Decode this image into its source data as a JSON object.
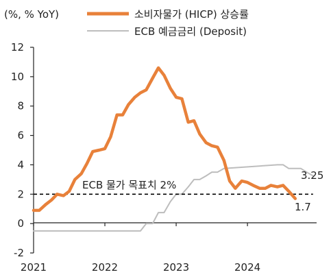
{
  "chart_data": {
    "type": "line",
    "unit_label": "(%, % YoY)",
    "ylim": [
      -2,
      12
    ],
    "yticks": [
      -2,
      0,
      2,
      4,
      6,
      8,
      10,
      12
    ],
    "xlim": [
      2021.0,
      2024.97
    ],
    "xticks": [
      {
        "value": 2021,
        "label": "2021"
      },
      {
        "value": 2022,
        "label": "2022"
      },
      {
        "value": 2023,
        "label": "2023"
      },
      {
        "value": 2024,
        "label": "2024"
      }
    ],
    "grid": false,
    "legend_position": "top-right",
    "series": [
      {
        "name": "소비자물가 (HICP) 상승률",
        "color": "#E8813A",
        "style": "solid",
        "x": [
          2021.0,
          2021.08,
          2021.17,
          2021.25,
          2021.33,
          2021.42,
          2021.5,
          2021.58,
          2021.67,
          2021.75,
          2021.83,
          2021.92,
          2022.0,
          2022.08,
          2022.17,
          2022.25,
          2022.33,
          2022.42,
          2022.5,
          2022.58,
          2022.67,
          2022.75,
          2022.83,
          2022.92,
          2023.0,
          2023.08,
          2023.17,
          2023.25,
          2023.33,
          2023.42,
          2023.5,
          2023.58,
          2023.67,
          2023.75,
          2023.83,
          2023.92,
          2024.0,
          2024.08,
          2024.17,
          2024.25,
          2024.33,
          2024.42,
          2024.5,
          2024.58,
          2024.67
        ],
        "values": [
          0.9,
          0.9,
          1.3,
          1.6,
          2.0,
          1.9,
          2.2,
          3.0,
          3.4,
          4.1,
          4.9,
          5.0,
          5.1,
          5.9,
          7.4,
          7.4,
          8.1,
          8.6,
          8.9,
          9.1,
          9.9,
          10.6,
          10.1,
          9.2,
          8.6,
          8.5,
          6.9,
          7.0,
          6.1,
          5.5,
          5.3,
          5.2,
          4.3,
          2.9,
          2.4,
          2.9,
          2.8,
          2.6,
          2.4,
          2.4,
          2.6,
          2.5,
          2.6,
          2.2,
          1.7
        ]
      },
      {
        "name": "ECB 예금금리 (Deposit)",
        "color": "#BDBDBD",
        "style": "solid",
        "x": [
          2021.0,
          2022.5,
          2022.58,
          2022.67,
          2022.75,
          2022.83,
          2022.92,
          2023.0,
          2023.08,
          2023.17,
          2023.25,
          2023.33,
          2023.42,
          2023.5,
          2023.58,
          2023.67,
          2024.42,
          2024.5,
          2024.58,
          2024.67,
          2024.75,
          2024.83,
          2024.92
        ],
        "values": [
          -0.5,
          -0.5,
          0.0,
          0.0,
          0.75,
          0.75,
          1.5,
          2.0,
          2.0,
          2.5,
          3.0,
          3.0,
          3.25,
          3.5,
          3.5,
          3.75,
          4.0,
          4.0,
          3.75,
          3.75,
          3.75,
          3.5,
          3.25
        ]
      },
      {
        "name": "ECB 물가 목표치 2%",
        "color": "#000000",
        "style": "dashed",
        "x": [
          2021.0,
          2024.92
        ],
        "values": [
          2.0,
          2.0
        ]
      }
    ],
    "annotations": [
      {
        "text": "ECB 물가 목표치 2%"
      },
      {
        "text": "3.25"
      },
      {
        "text": "1.7"
      }
    ]
  }
}
